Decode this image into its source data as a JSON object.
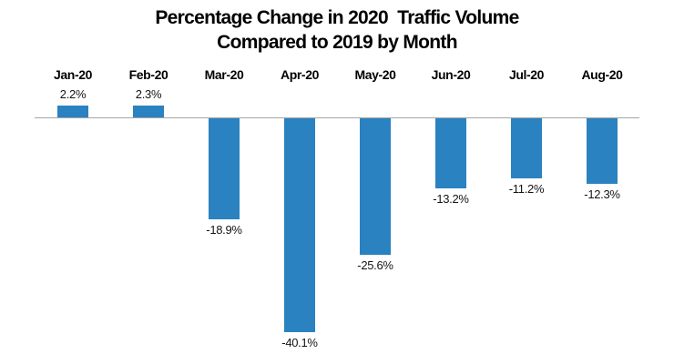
{
  "chart_data": {
    "type": "bar",
    "title": "Percentage Change in 2020  Traffic Volume Compared to 2019 by Month",
    "title_lines": [
      "Percentage Change in 2020  Traffic Volume",
      "Compared to 2019 by Month"
    ],
    "categories": [
      "Jan-20",
      "Feb-20",
      "Mar-20",
      "Apr-20",
      "May-20",
      "Jun-20",
      "Jul-20",
      "Aug-20"
    ],
    "values": [
      2.2,
      2.3,
      -18.9,
      -40.1,
      -25.6,
      -13.2,
      -11.2,
      -12.3
    ],
    "value_labels": [
      "2.2%",
      "2.3%",
      "-18.9%",
      "-40.1%",
      "-25.6%",
      "-13.2%",
      "-11.2%",
      "-12.3%"
    ],
    "xlabel": "",
    "ylabel": "",
    "ylim": [
      -45,
      5
    ],
    "grid": false,
    "legend": false,
    "bar_color": "#2a82c0",
    "axis_line_color": "#a6a6a6",
    "text_color": "#000000"
  }
}
